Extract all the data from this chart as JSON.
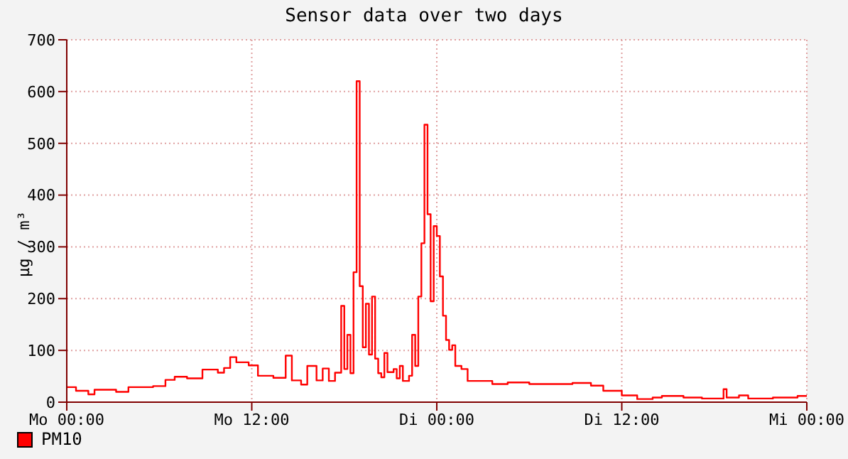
{
  "chart_data": {
    "type": "step",
    "title": "Sensor data over two days",
    "ylabel": "µg / m³",
    "categories": [
      "Mo 00:00",
      null,
      null,
      null,
      null,
      null,
      null,
      null,
      null,
      null,
      null,
      null,
      null,
      null,
      null,
      null,
      null,
      null,
      null,
      null,
      null,
      null,
      null,
      null,
      null,
      null,
      null,
      null,
      null,
      null,
      null,
      null,
      null,
      null,
      null,
      null,
      null,
      null,
      null,
      null,
      null,
      null,
      null,
      null,
      null,
      null,
      null,
      null,
      null,
      null,
      null,
      null,
      null,
      null,
      null,
      null,
      null,
      null,
      null,
      null,
      "Mo 12:00",
      null,
      null,
      null,
      null,
      null,
      null,
      null,
      null,
      null,
      null,
      null,
      null,
      null,
      null,
      null,
      null,
      null,
      null,
      null,
      null,
      null,
      null,
      null,
      null,
      null,
      null,
      null,
      null,
      null,
      null,
      null,
      null,
      null,
      null,
      null,
      null,
      null,
      null,
      null,
      null,
      null,
      null,
      null,
      null,
      null,
      null,
      null,
      null,
      null,
      null,
      null,
      null,
      null,
      null,
      null,
      null,
      null,
      null,
      null,
      "Di 00:00",
      null,
      null,
      null,
      null,
      null,
      null,
      null,
      null,
      null,
      null,
      null,
      null,
      null,
      null,
      null,
      null,
      null,
      null,
      null,
      null,
      null,
      null,
      null,
      null,
      null,
      null,
      null,
      null,
      null,
      null,
      null,
      null,
      null,
      null,
      null,
      null,
      null,
      null,
      null,
      null,
      null,
      null,
      null,
      null,
      null,
      null,
      null,
      null,
      null,
      null,
      null,
      null,
      null,
      null,
      null,
      null,
      null,
      null,
      null,
      "Di 12:00",
      null,
      null,
      null,
      null,
      null,
      null,
      null,
      null,
      null,
      null,
      null,
      null,
      null,
      null,
      null,
      null,
      null,
      null,
      null,
      null,
      null,
      null,
      null,
      null,
      null,
      null,
      null,
      null,
      null,
      null,
      null,
      null,
      null,
      null,
      null,
      null,
      null,
      null,
      null,
      null,
      null,
      null,
      null,
      null,
      null,
      null,
      null,
      null,
      null,
      null,
      null,
      null,
      null,
      null,
      null,
      null,
      null,
      null,
      null,
      "Mi 00:00"
    ],
    "ylim": [
      0,
      700
    ],
    "yticks": [
      0,
      100,
      200,
      300,
      400,
      500,
      600,
      700
    ],
    "grid": true,
    "legend": "bottom left",
    "marker": "none",
    "line_style": "solid",
    "series": [
      {
        "name": "PM10",
        "color": "#ff0000",
        "values": [
          29,
          29,
          29,
          22,
          22,
          22,
          22,
          15,
          15,
          24,
          24,
          24,
          24,
          24,
          24,
          24,
          20,
          20,
          20,
          20,
          29,
          29,
          29,
          29,
          29,
          29,
          29,
          29,
          31,
          31,
          31,
          31,
          43,
          43,
          43,
          49,
          49,
          49,
          49,
          46,
          46,
          46,
          46,
          46,
          63,
          63,
          63,
          63,
          63,
          57,
          57,
          66,
          66,
          87,
          87,
          77,
          77,
          77,
          77,
          71,
          71,
          71,
          51,
          51,
          51,
          51,
          51,
          47,
          47,
          47,
          47,
          90,
          90,
          42,
          42,
          42,
          34,
          34,
          70,
          70,
          70,
          42,
          42,
          65,
          65,
          41,
          41,
          57,
          57,
          186,
          64,
          130,
          56,
          251,
          620,
          224,
          106,
          190,
          92,
          204,
          84,
          56,
          48,
          95,
          58,
          58,
          64,
          46,
          70,
          41,
          41,
          51,
          130,
          70,
          204,
          307,
          536,
          363,
          195,
          340,
          321,
          243,
          167,
          120,
          101,
          110,
          70,
          70,
          64,
          64,
          41,
          41,
          41,
          41,
          41,
          41,
          41,
          41,
          35,
          35,
          35,
          35,
          35,
          38,
          38,
          38,
          38,
          38,
          38,
          38,
          35,
          35,
          35,
          35,
          35,
          35,
          35,
          35,
          35,
          35,
          35,
          35,
          35,
          35,
          37,
          37,
          37,
          37,
          37,
          37,
          32,
          32,
          32,
          32,
          22,
          22,
          22,
          22,
          22,
          22,
          13,
          13,
          13,
          13,
          13,
          6,
          6,
          6,
          6,
          6,
          9,
          9,
          9,
          12,
          12,
          12,
          12,
          12,
          12,
          12,
          9,
          9,
          9,
          9,
          9,
          9,
          7,
          7,
          7,
          7,
          7,
          7,
          7,
          25,
          9,
          9,
          9,
          9,
          13,
          13,
          13,
          7,
          7,
          7,
          7,
          7,
          7,
          7,
          7,
          9,
          9,
          9,
          9,
          9,
          9,
          9,
          9,
          12,
          12,
          12,
          12
        ]
      }
    ]
  }
}
